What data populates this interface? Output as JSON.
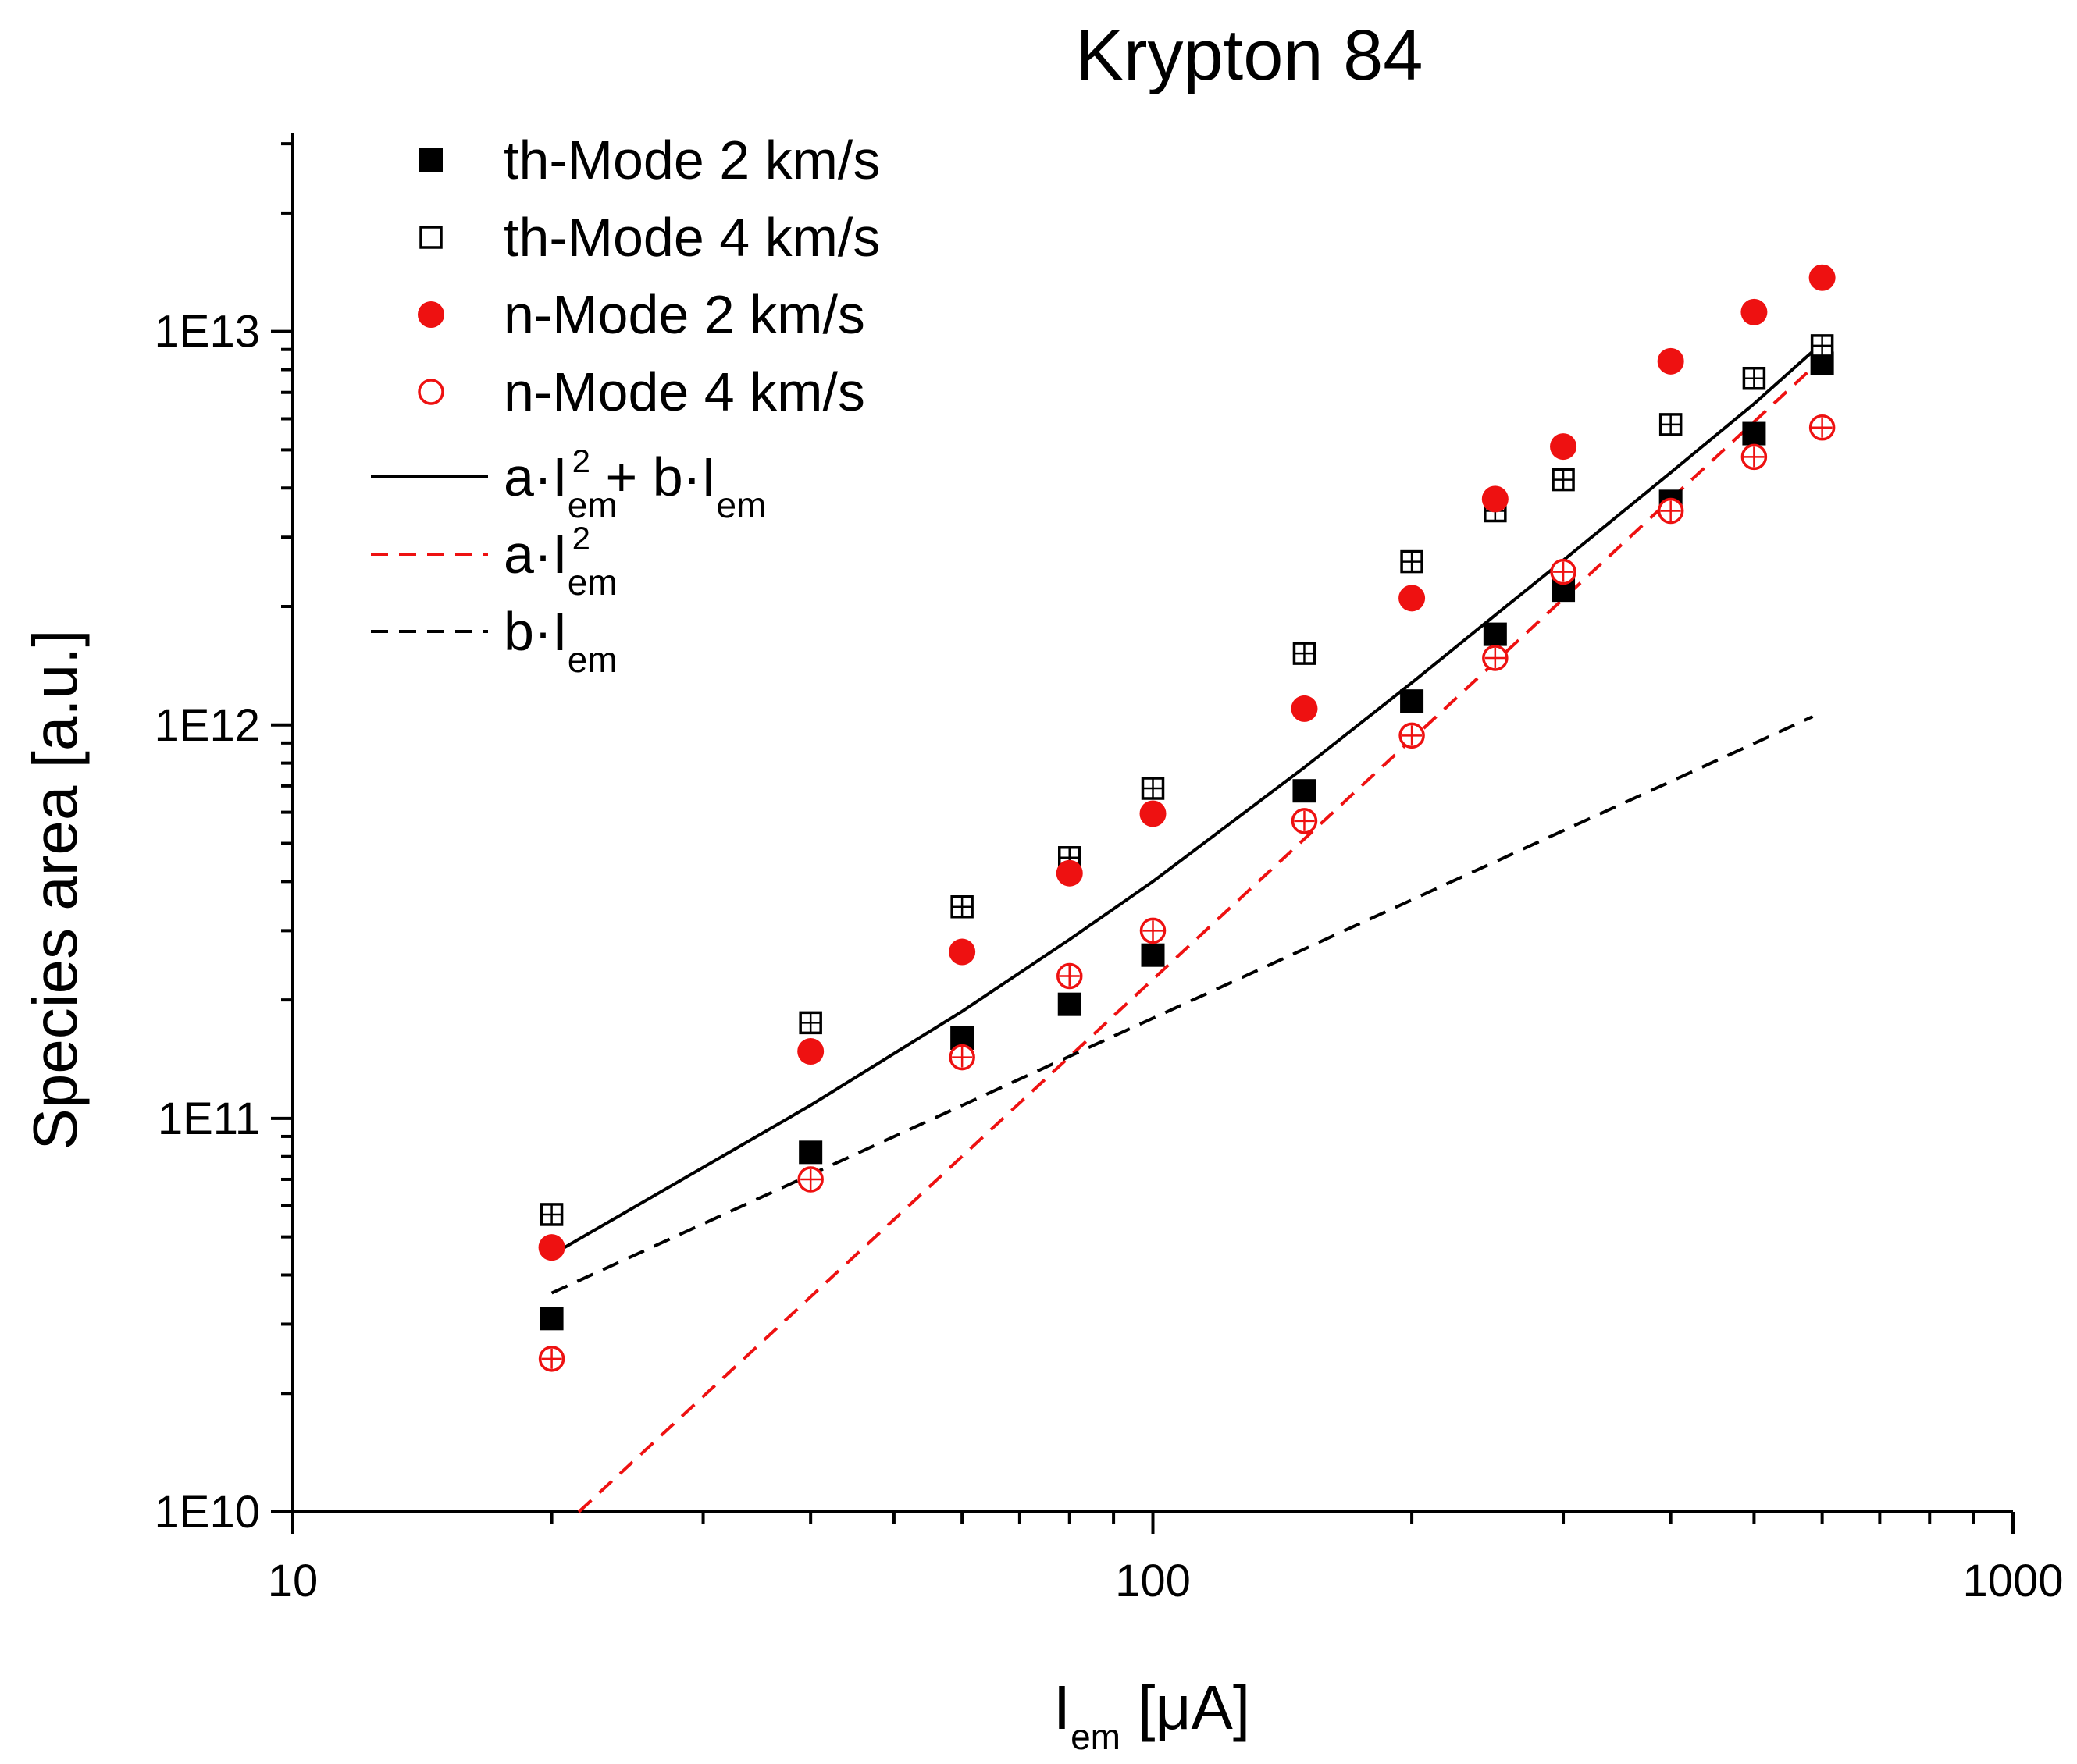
{
  "chart_data": {
    "type": "scatter",
    "title": "Krypton 84",
    "xlabel": {
      "main": "I",
      "sub": "em",
      "rest": " [μA]"
    },
    "ylabel": "Species area [a.u.]",
    "xscale": "log",
    "yscale": "log",
    "xlim": [
      10,
      1000
    ],
    "ylim": [
      10000000000.0,
      32000000000000.0
    ],
    "x_ticks": [
      {
        "value": 10,
        "label": "10"
      },
      {
        "value": 100,
        "label": "100"
      },
      {
        "value": 1000,
        "label": "1000"
      }
    ],
    "y_ticks": [
      {
        "value": 10000000000.0,
        "label": "1E10"
      },
      {
        "value": 100000000000.0,
        "label": "1E11"
      },
      {
        "value": 1000000000000.0,
        "label": "1E12"
      },
      {
        "value": 10000000000000.0,
        "label": "1E13"
      }
    ],
    "legend_position": "top-left",
    "series": [
      {
        "name": "th-Mode 2 km/s",
        "marker": "filled-square",
        "color": "#000000",
        "x": [
          20,
          40,
          60,
          80,
          100,
          150,
          200,
          250,
          300,
          400,
          500,
          600
        ],
        "y": [
          31000000000.0,
          82000000000.0,
          160000000000.0,
          195000000000.0,
          260000000000.0,
          680000000000.0,
          1150000000000.0,
          1700000000000.0,
          2200000000000.0,
          3700000000000.0,
          5500000000000.0,
          8300000000000.0
        ]
      },
      {
        "name": "th-Mode 4 km/s",
        "marker": "open-square",
        "color": "#000000",
        "x": [
          20,
          40,
          60,
          80,
          100,
          150,
          200,
          250,
          300,
          400,
          500,
          600
        ],
        "y": [
          57000000000.0,
          175000000000.0,
          345000000000.0,
          460000000000.0,
          690000000000.0,
          1520000000000.0,
          2600000000000.0,
          3500000000000.0,
          4200000000000.0,
          5800000000000.0,
          7600000000000.0,
          9200000000000.0
        ]
      },
      {
        "name": "n-Mode  2 km/s",
        "marker": "filled-circle",
        "color": "#ee1111",
        "x": [
          20,
          40,
          60,
          80,
          100,
          150,
          200,
          250,
          300,
          400,
          500,
          600
        ],
        "y": [
          47000000000.0,
          148000000000.0,
          265000000000.0,
          420000000000.0,
          595000000000.0,
          1100000000000.0,
          2100000000000.0,
          3750000000000.0,
          5100000000000.0,
          8400000000000.0,
          11200000000000.0,
          13700000000000.0
        ]
      },
      {
        "name": "n-Mode  4 km/s",
        "marker": "open-circle",
        "color": "#ee1111",
        "x": [
          20,
          40,
          60,
          80,
          100,
          150,
          200,
          250,
          300,
          400,
          500,
          600
        ],
        "y": [
          24500000000.0,
          70000000000.0,
          143000000000.0,
          230000000000.0,
          300000000000.0,
          570000000000.0,
          940000000000.0,
          1480000000000.0,
          2450000000000.0,
          3500000000000.0,
          4800000000000.0,
          5700000000000.0
        ]
      }
    ],
    "fits": [
      {
        "label": {
          "parts": [
            [
              "a·I",
              ""
            ],
            [
              "em",
              "sub"
            ],
            [
              "2",
              "sup"
            ],
            [
              " + b·I",
              ""
            ],
            [
              "em",
              "sub"
            ]
          ]
        },
        "style": "solid",
        "color": "#000000",
        "x": [
          20,
          40,
          60,
          80,
          100,
          150,
          200,
          250,
          300,
          400,
          500,
          585
        ],
        "y": [
          45000000000.0,
          108000000000.0,
          187000000000.0,
          285000000000.0,
          400000000000.0,
          780000000000.0,
          1280000000000.0,
          1900000000000.0,
          2620000000000.0,
          4380000000000.0,
          6550000000000.0,
          8900000000000.0
        ]
      },
      {
        "label": {
          "parts": [
            [
              "a·I",
              ""
            ],
            [
              "em",
              "sub"
            ],
            [
              "2",
              "sup"
            ]
          ]
        },
        "style": "dashed",
        "color": "#ee1111",
        "x": [
          21.5,
          585
        ],
        "y": [
          10000000000.0,
          8100000000000.0
        ]
      },
      {
        "label": {
          "parts": [
            [
              "b·I",
              ""
            ],
            [
              "em",
              "sub"
            ]
          ]
        },
        "style": "dashed",
        "color": "#000000",
        "x": [
          20,
          585
        ],
        "y": [
          36000000000.0,
          1050000000000.0
        ]
      }
    ]
  }
}
